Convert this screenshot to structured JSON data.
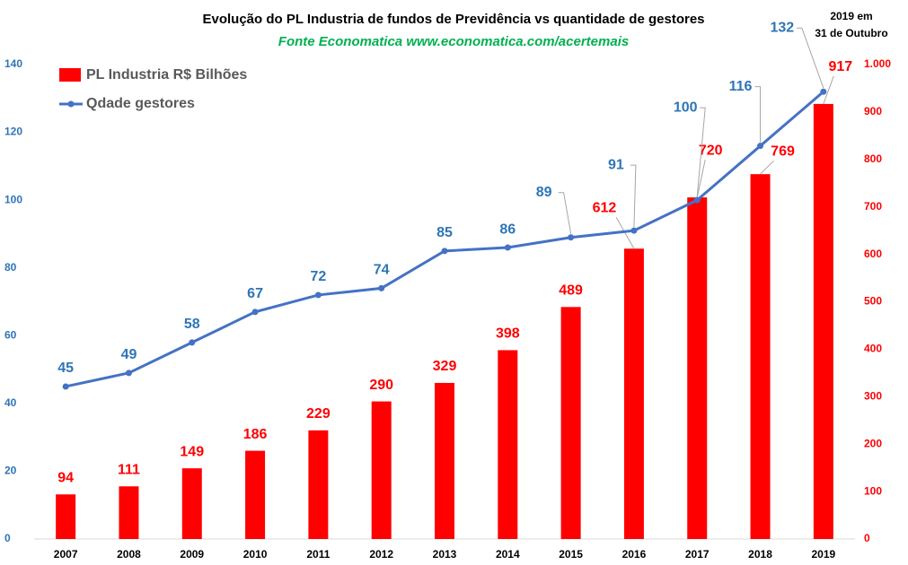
{
  "chart_data": {
    "type": "combo",
    "title": "Evolução do PL Industria de fundos de Previdência vs quantidade de gestores",
    "subtitle": "Fonte Economatica www.economatica.com/acertemais",
    "annotation": [
      "2019 em",
      "31 de Outubro"
    ],
    "categories": [
      "2007",
      "2008",
      "2009",
      "2010",
      "2011",
      "2012",
      "2013",
      "2014",
      "2015",
      "2016",
      "2017",
      "2018",
      "2019"
    ],
    "series": [
      {
        "name": "PL Industria R$ Bilhões",
        "type": "bar",
        "axis": "y2",
        "color": "#ff0000",
        "values": [
          94,
          111,
          149,
          186,
          229,
          290,
          329,
          398,
          489,
          612,
          720,
          769,
          917
        ]
      },
      {
        "name": "Qdade gestores",
        "type": "line",
        "axis": "y",
        "color": "#4472c4",
        "values": [
          45,
          49,
          58,
          67,
          72,
          74,
          85,
          86,
          89,
          91,
          100,
          116,
          132
        ]
      }
    ],
    "ylim": [
      0,
      140
    ],
    "yticks": [
      0,
      20,
      40,
      60,
      80,
      100,
      120,
      140
    ],
    "y2lim": [
      0,
      1000
    ],
    "y2ticks": [
      0,
      100,
      200,
      300,
      400,
      500,
      600,
      700,
      800,
      900,
      {
        "value": 1000,
        "label": "1.000"
      }
    ],
    "legend": "upper-left",
    "grid": false
  }
}
